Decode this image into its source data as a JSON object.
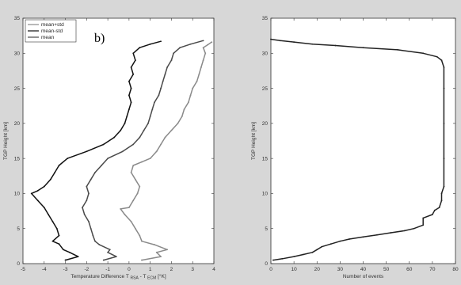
{
  "chart_data": [
    {
      "type": "line",
      "panel_label": "b)",
      "xlabel_main": "Temperature Difference T",
      "xlabel_sub1": "RSA",
      "xlabel_mid": " - T",
      "xlabel_sub2": "ECM",
      "xlabel_unit": " [°K]",
      "ylabel": "TGP Height [km]",
      "xlim": [
        -5,
        4
      ],
      "ylim": [
        0,
        35
      ],
      "xticks": [
        "-5",
        "-4",
        "-3",
        "-2",
        "-1",
        "0",
        "1",
        "2",
        "3",
        "4"
      ],
      "yticks": [
        "0",
        "5",
        "10",
        "15",
        "20",
        "25",
        "30",
        "35"
      ],
      "grid": false,
      "legend_position": "top-left",
      "series": [
        {
          "name": "mean+std",
          "color": "#8a8a8a",
          "points": [
            [
              0.6,
              0.5
            ],
            [
              1.5,
              1.0
            ],
            [
              1.3,
              1.6
            ],
            [
              1.8,
              2.0
            ],
            [
              1.2,
              2.7
            ],
            [
              0.6,
              3.2
            ],
            [
              0.5,
              4.0
            ],
            [
              0.3,
              5.0
            ],
            [
              0.1,
              6.0
            ],
            [
              -0.2,
              7.0
            ],
            [
              -0.4,
              7.8
            ],
            [
              0.0,
              8.0
            ],
            [
              0.2,
              9.0
            ],
            [
              0.4,
              10.0
            ],
            [
              0.5,
              11.0
            ],
            [
              0.3,
              12.0
            ],
            [
              0.1,
              13.0
            ],
            [
              0.2,
              14.0
            ],
            [
              0.6,
              14.5
            ],
            [
              1.0,
              15.0
            ],
            [
              1.3,
              16.0
            ],
            [
              1.5,
              17.0
            ],
            [
              1.7,
              18.0
            ],
            [
              2.0,
              19.0
            ],
            [
              2.3,
              20.0
            ],
            [
              2.5,
              21.0
            ],
            [
              2.6,
              22.0
            ],
            [
              2.8,
              23.0
            ],
            [
              2.9,
              24.0
            ],
            [
              3.0,
              25.0
            ],
            [
              3.2,
              26.0
            ],
            [
              3.3,
              27.0
            ],
            [
              3.4,
              28.0
            ],
            [
              3.5,
              29.0
            ],
            [
              3.6,
              30.0
            ],
            [
              3.5,
              30.8
            ],
            [
              3.7,
              31.2
            ],
            [
              3.9,
              31.6
            ]
          ]
        },
        {
          "name": "mean-std",
          "color": "#111111",
          "points": [
            [
              -3.0,
              0.5
            ],
            [
              -2.4,
              1.0
            ],
            [
              -2.8,
              1.6
            ],
            [
              -3.1,
              2.0
            ],
            [
              -3.3,
              2.8
            ],
            [
              -3.6,
              3.2
            ],
            [
              -3.3,
              4.0
            ],
            [
              -3.4,
              5.0
            ],
            [
              -3.6,
              6.0
            ],
            [
              -3.8,
              7.0
            ],
            [
              -4.0,
              8.0
            ],
            [
              -4.3,
              9.0
            ],
            [
              -4.6,
              10.0
            ],
            [
              -4.3,
              10.4
            ],
            [
              -4.0,
              11.0
            ],
            [
              -3.7,
              12.0
            ],
            [
              -3.5,
              13.0
            ],
            [
              -3.3,
              14.0
            ],
            [
              -2.9,
              15.0
            ],
            [
              -2.0,
              16.0
            ],
            [
              -1.2,
              17.0
            ],
            [
              -0.7,
              18.0
            ],
            [
              -0.4,
              19.0
            ],
            [
              -0.2,
              20.0
            ],
            [
              -0.1,
              21.0
            ],
            [
              0.0,
              22.0
            ],
            [
              0.1,
              23.0
            ],
            [
              0.0,
              24.0
            ],
            [
              0.1,
              25.0
            ],
            [
              0.0,
              26.0
            ],
            [
              0.2,
              27.0
            ],
            [
              0.1,
              28.0
            ],
            [
              0.3,
              29.0
            ],
            [
              0.2,
              30.0
            ],
            [
              0.5,
              30.8
            ],
            [
              1.0,
              31.3
            ],
            [
              1.5,
              31.7
            ]
          ]
        },
        {
          "name": "mean",
          "color": "#4a4a4a",
          "points": [
            [
              -1.2,
              0.5
            ],
            [
              -0.6,
              1.0
            ],
            [
              -1.0,
              1.6
            ],
            [
              -0.9,
              2.0
            ],
            [
              -1.4,
              2.7
            ],
            [
              -1.6,
              3.2
            ],
            [
              -1.7,
              4.0
            ],
            [
              -1.8,
              5.0
            ],
            [
              -1.9,
              6.0
            ],
            [
              -2.1,
              7.0
            ],
            [
              -2.2,
              8.0
            ],
            [
              -2.0,
              9.0
            ],
            [
              -1.9,
              10.0
            ],
            [
              -2.0,
              11.0
            ],
            [
              -1.8,
              12.0
            ],
            [
              -1.6,
              13.0
            ],
            [
              -1.3,
              14.0
            ],
            [
              -1.0,
              15.0
            ],
            [
              -0.3,
              16.0
            ],
            [
              0.2,
              17.0
            ],
            [
              0.5,
              18.0
            ],
            [
              0.7,
              19.0
            ],
            [
              0.9,
              20.0
            ],
            [
              1.0,
              21.0
            ],
            [
              1.1,
              22.0
            ],
            [
              1.2,
              23.0
            ],
            [
              1.4,
              24.0
            ],
            [
              1.5,
              25.0
            ],
            [
              1.6,
              26.0
            ],
            [
              1.7,
              27.0
            ],
            [
              1.8,
              28.0
            ],
            [
              2.0,
              29.0
            ],
            [
              2.1,
              30.0
            ],
            [
              2.4,
              30.8
            ],
            [
              2.9,
              31.3
            ],
            [
              3.5,
              31.8
            ]
          ]
        }
      ]
    },
    {
      "type": "line",
      "xlabel": "Number of events",
      "ylabel": "TGP Height [km]",
      "xlim": [
        0,
        80
      ],
      "ylim": [
        0,
        35
      ],
      "xticks": [
        "0",
        "10",
        "20",
        "30",
        "40",
        "50",
        "60",
        "70",
        "80"
      ],
      "yticks": [
        "0",
        "5",
        "10",
        "15",
        "20",
        "25",
        "30",
        "35"
      ],
      "grid": false,
      "series": [
        {
          "color": "#222222",
          "points": [
            [
              1,
              0.5
            ],
            [
              5,
              0.7
            ],
            [
              10,
              1.0
            ],
            [
              14,
              1.3
            ],
            [
              18,
              1.6
            ],
            [
              20,
              2.0
            ],
            [
              22,
              2.4
            ],
            [
              26,
              2.8
            ],
            [
              30,
              3.2
            ],
            [
              34,
              3.5
            ],
            [
              40,
              3.8
            ],
            [
              46,
              4.1
            ],
            [
              52,
              4.4
            ],
            [
              58,
              4.7
            ],
            [
              62,
              5.0
            ],
            [
              66,
              5.5
            ],
            [
              66,
              6.5
            ],
            [
              70,
              7.0
            ],
            [
              71,
              7.6
            ],
            [
              73,
              8.0
            ],
            [
              74,
              9.0
            ],
            [
              74,
              10.0
            ],
            [
              75,
              11.0
            ],
            [
              75,
              15.0
            ],
            [
              75,
              20.0
            ],
            [
              75,
              25.0
            ],
            [
              75,
              28.0
            ],
            [
              74,
              29.0
            ],
            [
              72,
              29.5
            ],
            [
              66,
              30.0
            ],
            [
              55,
              30.5
            ],
            [
              40,
              30.8
            ],
            [
              28,
              31.1
            ],
            [
              18,
              31.3
            ],
            [
              10,
              31.6
            ],
            [
              4,
              31.8
            ],
            [
              0,
              32.0
            ]
          ]
        }
      ]
    }
  ]
}
